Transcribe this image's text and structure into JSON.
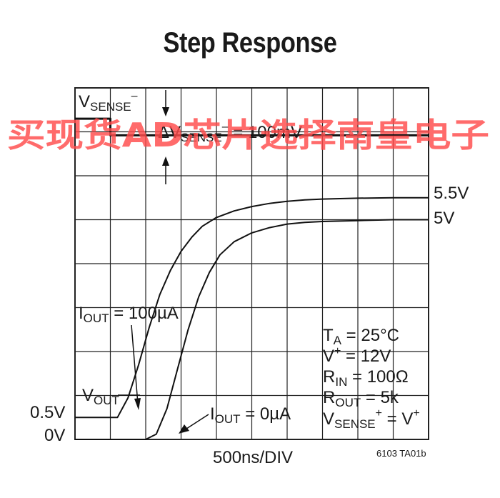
{
  "chart_data": {
    "type": "line",
    "title": "Step Response",
    "xlabel": "500ns/DIV",
    "figure_id": "6103 TA01b",
    "grid": true,
    "x_divisions": 10,
    "y_divisions": 8,
    "series": [
      {
        "name": "IOUT = 100µA",
        "x": [
          0,
          1.0,
          1.2,
          1.5,
          1.8,
          2.1,
          2.4,
          2.7,
          3.0,
          3.3,
          3.6,
          4.0,
          4.5,
          5.0,
          5.5,
          6.0,
          6.5,
          7.0,
          8.0,
          9.0,
          10.0
        ],
        "y": [
          0.5,
          0.5,
          0.5,
          0.95,
          1.7,
          2.55,
          3.3,
          3.85,
          4.28,
          4.6,
          4.85,
          5.05,
          5.2,
          5.3,
          5.37,
          5.42,
          5.45,
          5.47,
          5.49,
          5.5,
          5.5
        ]
      },
      {
        "name": "IOUT = 0µA",
        "x": [
          0,
          1.0,
          2.0,
          2.3,
          2.6,
          2.9,
          3.2,
          3.5,
          3.8,
          4.1,
          4.5,
          5.0,
          5.5,
          6.0,
          6.5,
          7.0,
          8.0,
          9.0,
          10.0
        ],
        "y": [
          0,
          0,
          0,
          0.12,
          0.7,
          1.6,
          2.5,
          3.25,
          3.8,
          4.2,
          4.5,
          4.7,
          4.82,
          4.9,
          4.94,
          4.96,
          4.98,
          5.0,
          5.0
        ]
      },
      {
        "name": "VSENSE⁻",
        "x": [
          0,
          1.0,
          1.0,
          10.0
        ],
        "y": [
          7.3,
          7.3,
          6.92,
          6.92
        ]
      }
    ],
    "end_labels": [
      "5.5V",
      "5V"
    ],
    "y_labels": [
      "0.5V",
      "0V"
    ],
    "annotations": {
      "vsense": {
        "main": "V",
        "sub": "SENSE",
        "sup": "–"
      },
      "delta": {
        "delta": "Δ",
        "main": "V",
        "sub": "SENSE",
        "sup": "–",
        "rest": " = 100mV"
      },
      "iout100": {
        "main": "I",
        "sub": "OUT",
        "rest": " = 100µA"
      },
      "iout0": {
        "main": "I",
        "sub": "OUT",
        "rest": " = 0µA"
      },
      "vout": {
        "main": "V",
        "sub": "OUT"
      }
    },
    "conditions": [
      {
        "main": "T",
        "sub": "A",
        "rest": " = 25°C"
      },
      {
        "main": "V",
        "sup": "+",
        "rest": " = 12V"
      },
      {
        "main": "R",
        "sub": "IN",
        "rest": " = 100Ω"
      },
      {
        "main": "R",
        "sub": "OUT",
        "rest": " = 5k"
      },
      {
        "main": "V",
        "sub": "SENSE",
        "sup": "+",
        "rest": " = V",
        "sup2": "+"
      }
    ]
  },
  "watermark": "买现货AD芯片选择南皇电子",
  "colors": {
    "trace": "#111111",
    "grid": "#222222",
    "watermark": "#ff4a4a"
  }
}
